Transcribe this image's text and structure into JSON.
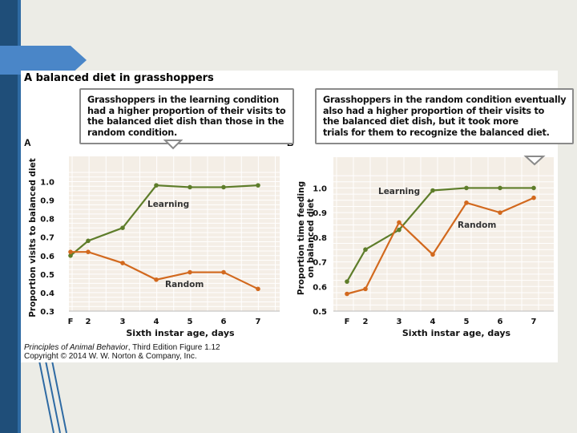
{
  "figure": {
    "title": "A balanced diet in grasshoppers",
    "caption_book": "Principles of Animal Behavior",
    "caption_edition": ", Third Edition  Figure 1.12",
    "caption_copyright": "Copyright © 2014 W. W. Norton & Company, Inc."
  },
  "panel_a": {
    "letter": "A",
    "callout_lines": [
      "Grasshoppers in the learning condition",
      "had a higher proportion of their visits to",
      "the balanced diet dish than those in the",
      "random condition."
    ]
  },
  "panel_b": {
    "letter": "B",
    "callout_lines": [
      "Grasshoppers in the random condition eventually",
      "also had a higher proportion of their visits to",
      "the balanced diet dish, but it took more",
      "trials for them to recognize the balanced diet."
    ]
  },
  "colors": {
    "learning": "#5e7d2a",
    "random": "#d2691e",
    "grid_bg": "#f4eee6",
    "grid_line": "#ffffff",
    "callout_border": "#8a8a8a"
  },
  "chart_data": [
    {
      "type": "line",
      "panel": "A",
      "categories": [
        "F",
        "2",
        "3",
        "4",
        "5",
        "6",
        "7"
      ],
      "series": [
        {
          "name": "Learning",
          "values": [
            0.6,
            0.68,
            0.75,
            0.98,
            0.97,
            0.97,
            0.98
          ]
        },
        {
          "name": "Random",
          "values": [
            0.62,
            0.62,
            0.56,
            0.47,
            0.51,
            0.51,
            0.42
          ]
        }
      ],
      "xlabel": "Sixth instar age, days",
      "ylabel": "Proportion visits to balanced diet",
      "ylim": [
        0.3,
        1.05
      ],
      "yticks": [
        "0.3",
        "0.4",
        "0.5",
        "0.6",
        "0.7",
        "0.8",
        "0.9",
        "1.0"
      ],
      "grid": true
    },
    {
      "type": "line",
      "panel": "B",
      "categories": [
        "F",
        "2",
        "3",
        "4",
        "5",
        "6",
        "7"
      ],
      "series": [
        {
          "name": "Learning",
          "values": [
            0.62,
            0.75,
            0.83,
            0.99,
            1.0,
            1.0,
            1.0
          ]
        },
        {
          "name": "Random",
          "values": [
            0.57,
            0.59,
            0.86,
            0.73,
            0.94,
            0.9,
            0.96
          ]
        }
      ],
      "xlabel": "Sixth instar age, days",
      "ylabel_lines": [
        "Proportion time feeding",
        "on balanced diet"
      ],
      "ylim": [
        0.5,
        1.06
      ],
      "yticks": [
        "0.5",
        "0.6",
        "0.7",
        "0.8",
        "0.9",
        "1.0"
      ],
      "grid": true
    }
  ]
}
